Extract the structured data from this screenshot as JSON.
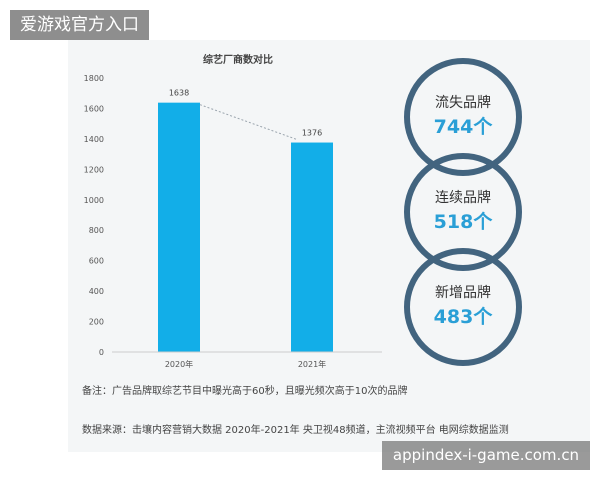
{
  "header_badge": "爱游戏官方入口",
  "watermark": "appindex-i-game.com.cn",
  "chart_data": {
    "type": "bar",
    "title": "综艺厂商数对比",
    "categories": [
      "2020年",
      "2021年"
    ],
    "values": [
      1638,
      1376
    ],
    "data_labels": [
      "1638",
      "1376"
    ],
    "ylim": [
      0,
      1800
    ],
    "yticks": [
      "0",
      "200",
      "400",
      "600",
      "800",
      "1000",
      "1200",
      "1400",
      "1600",
      "1800"
    ],
    "xlabel": "",
    "ylabel": "",
    "grid": false,
    "bar_color": "#12aee8",
    "trend_line": "dotted"
  },
  "brand_stats": [
    {
      "label": "流失品牌",
      "value": "744个"
    },
    {
      "label": "连续品牌",
      "value": "518个"
    },
    {
      "label": "新增品牌",
      "value": "483个"
    }
  ],
  "ring_color": "#42647f",
  "value_color": "#2a9fd6",
  "note": "备注：广告品牌取综艺节目中曝光高于60秒，且曝光频次高于10次的品牌",
  "source": "数据来源：击壤内容营销大数据 2020年-2021年 央卫视48频道，主流视频平台 电网综数据监测"
}
